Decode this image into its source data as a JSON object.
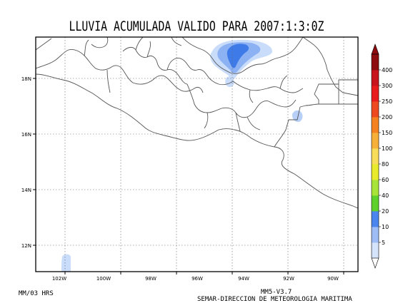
{
  "title": "LLUVIA ACUMULADA VALIDO PARA 2007:1:3:0Z",
  "interval_label": "MM/03 HRS",
  "model_label": "MM5-V3.7",
  "agency_label": "SEMAR-DIRECCION DE METEOROLOGIA MARITIMA",
  "axes": {
    "lon_ticks": [
      "102W",
      "100W",
      "98W",
      "96W",
      "94W",
      "92W",
      "90W"
    ],
    "lat_ticks": [
      "18N",
      "16N",
      "14N",
      "12N"
    ],
    "grid": "dotted"
  },
  "colorbar": {
    "levels": [
      "5",
      "10",
      "20",
      "40",
      "60",
      "80",
      "100",
      "150",
      "200",
      "250",
      "300",
      "400"
    ],
    "colors": [
      "#d5e3fb",
      "#9ebcf5",
      "#4a86ee",
      "#5fd12c",
      "#a8e33a",
      "#e8ea2c",
      "#f7dd5a",
      "#f7b03a",
      "#f58220",
      "#ee4a22",
      "#e81c1c",
      "#c8141c",
      "#8c0c10"
    ]
  },
  "colors": {
    "coastline": "#555555",
    "frame": "#000000",
    "rain_light": "#c9dcfa",
    "rain_mid": "#8cb2f3",
    "rain_heavy": "#3f7ae9"
  }
}
